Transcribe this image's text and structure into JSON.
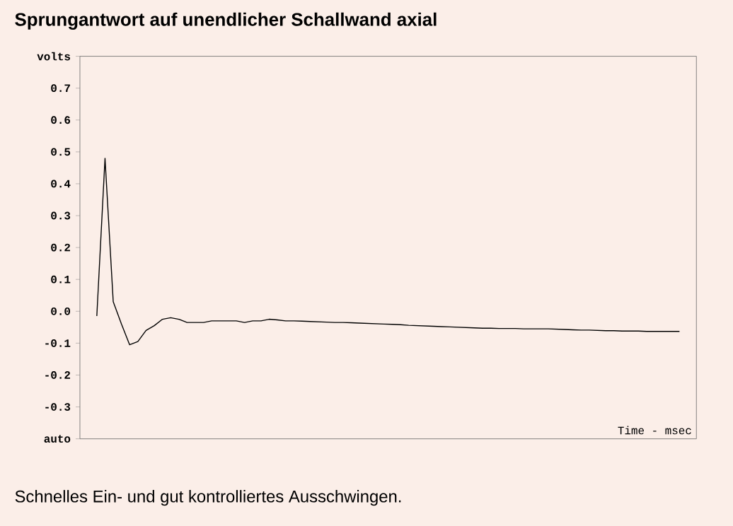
{
  "chart_data": {
    "type": "line",
    "title": "Sprungantwort auf unendlicher Schallwand axial",
    "xlabel": "Time - msec",
    "annotations": [
      "Schnelles Ein- und gut kontrolliertes Ausschwingen."
    ],
    "categories": [
      null,
      null,
      null,
      null,
      null,
      null,
      null,
      null,
      null,
      null,
      null,
      null,
      null,
      null,
      null,
      null,
      null,
      null,
      null,
      null,
      null,
      null,
      null,
      null,
      null,
      null,
      null,
      null,
      null,
      null,
      null,
      null,
      null,
      null,
      null,
      null,
      null,
      null,
      null,
      null,
      null,
      null,
      null,
      null,
      null,
      null,
      null,
      null,
      null,
      null,
      null,
      null,
      null,
      null,
      null,
      null,
      null,
      null,
      null,
      null,
      null,
      null,
      null,
      null,
      null,
      null,
      null,
      null,
      null,
      null,
      null,
      null
    ],
    "series": [
      {
        "color": "#000000",
        "values": [
          -0.015,
          0.48,
          0.03,
          -0.04,
          -0.105,
          -0.095,
          -0.06,
          -0.045,
          -0.025,
          -0.02,
          -0.025,
          -0.035,
          -0.035,
          -0.035,
          -0.03,
          -0.03,
          -0.03,
          -0.03,
          -0.035,
          -0.03,
          -0.03,
          -0.025,
          -0.027,
          -0.03,
          -0.03,
          -0.031,
          -0.032,
          -0.033,
          -0.034,
          -0.035,
          -0.035,
          -0.036,
          -0.037,
          -0.038,
          -0.039,
          -0.04,
          -0.041,
          -0.042,
          -0.044,
          -0.045,
          -0.046,
          -0.047,
          -0.048,
          -0.049,
          -0.05,
          -0.051,
          -0.052,
          -0.053,
          -0.053,
          -0.054,
          -0.054,
          -0.054,
          -0.055,
          -0.055,
          -0.055,
          -0.055,
          -0.056,
          -0.057,
          -0.058,
          -0.059,
          -0.059,
          -0.06,
          -0.061,
          -0.061,
          -0.062,
          -0.062,
          -0.062,
          -0.063,
          -0.063,
          -0.063,
          -0.063,
          -0.063
        ]
      }
    ],
    "ylim": [
      -0.4,
      0.8
    ],
    "yticks": [
      {
        "value": -0.4,
        "label": "auto"
      },
      {
        "value": -0.3,
        "label": "-0.3"
      },
      {
        "value": -0.2,
        "label": "-0.2"
      },
      {
        "value": -0.1,
        "label": "-0.1"
      },
      {
        "value": 0.0,
        "label": "0.0"
      },
      {
        "value": 0.1,
        "label": "0.1"
      },
      {
        "value": 0.2,
        "label": "0.2"
      },
      {
        "value": 0.3,
        "label": "0.3"
      },
      {
        "value": 0.4,
        "label": "0.4"
      },
      {
        "value": 0.5,
        "label": "0.5"
      },
      {
        "value": 0.6,
        "label": "0.6"
      },
      {
        "value": 0.7,
        "label": "0.7"
      },
      {
        "value": 0.8,
        "label": "volts"
      }
    ],
    "tick_labels": "y",
    "grid": false,
    "marker": "none",
    "line_style": "solid"
  }
}
